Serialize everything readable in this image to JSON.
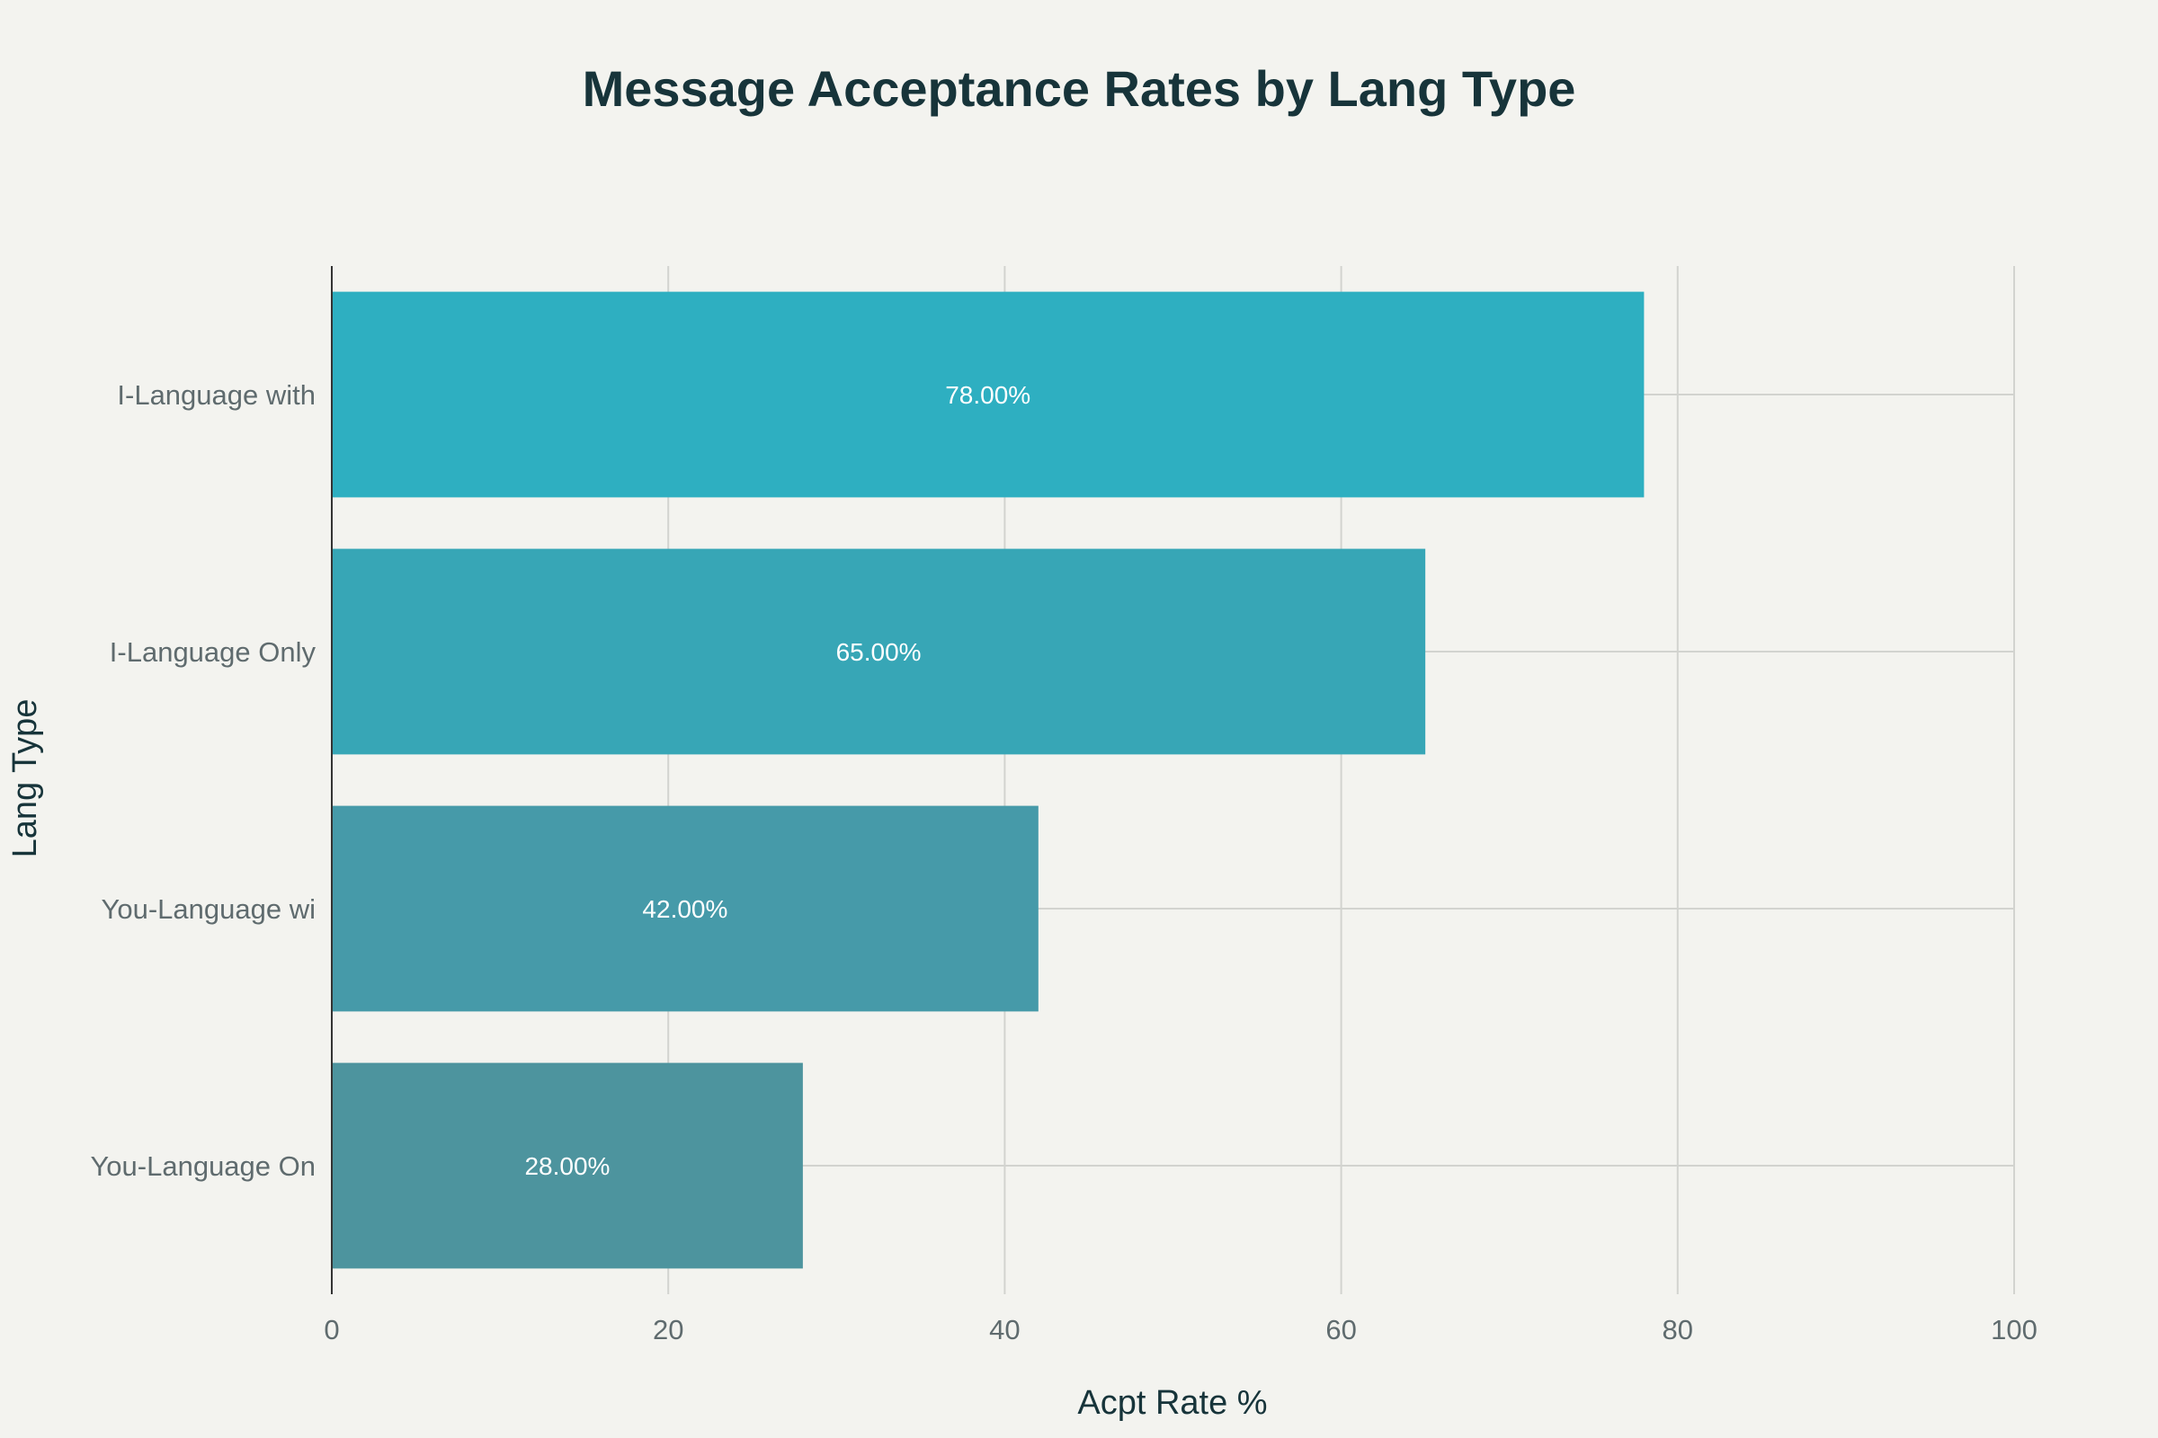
{
  "chart_data": {
    "type": "bar",
    "orientation": "horizontal",
    "title": "Message Acceptance Rates by Lang Type",
    "xlabel": "Acpt Rate %",
    "ylabel": "Lang Type",
    "categories": [
      "I-Language with",
      "I-Language Only",
      "You-Language wi",
      "You-Language On"
    ],
    "values": [
      78,
      65,
      42,
      28
    ],
    "value_labels": [
      "78.00%",
      "65.00%",
      "42.00%",
      "28.00%"
    ],
    "bar_colors": [
      "#2eafc1",
      "#37a6b6",
      "#469aa9",
      "#4d949e"
    ],
    "xlim": [
      0,
      100
    ],
    "xticks": [
      0,
      20,
      40,
      60,
      80,
      100
    ],
    "xtick_labels": [
      "0",
      "20",
      "40",
      "60",
      "80",
      "100"
    ],
    "grid": true,
    "legend": "none"
  }
}
